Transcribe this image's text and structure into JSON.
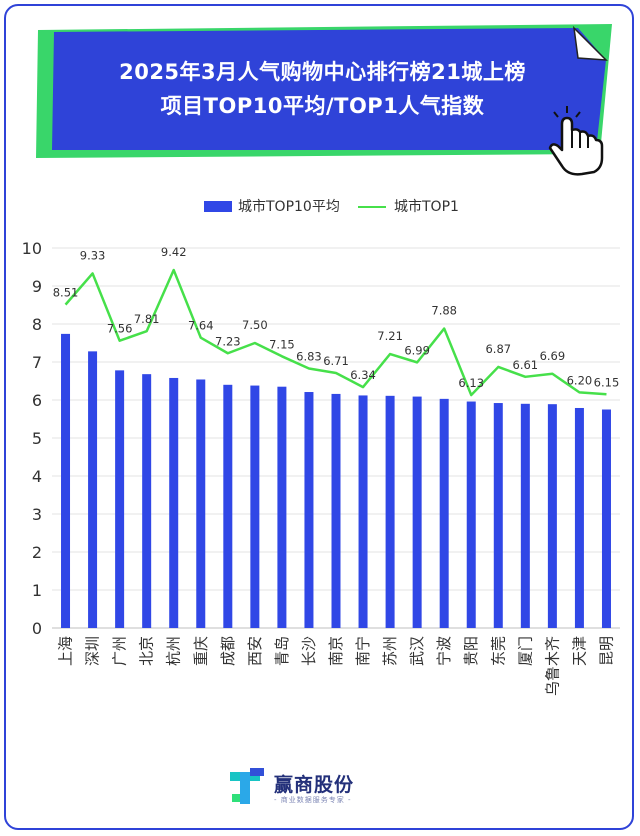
{
  "title_lines": [
    "2025年3月人气购物中心排行榜21城上榜",
    "项目TOP10平均/TOP1人气指数"
  ],
  "logo": {
    "name": "赢商股份",
    "tagline": "- 商业数据服务专家 -"
  },
  "colors": {
    "bar": "#3047e6",
    "line": "#46e04a",
    "banner": "#2f43d8",
    "banner_shadow": "#39d66a"
  },
  "chart_data": {
    "type": "bar",
    "categories": [
      "上海",
      "深圳",
      "广州",
      "北京",
      "杭州",
      "重庆",
      "成都",
      "西安",
      "青岛",
      "长沙",
      "南京",
      "南宁",
      "苏州",
      "武汉",
      "宁波",
      "贵阳",
      "东莞",
      "厦门",
      "乌鲁木齐",
      "天津",
      "昆明"
    ],
    "series": [
      {
        "name": "城市TOP10平均",
        "type": "bar",
        "values": [
          7.74,
          7.28,
          6.78,
          6.68,
          6.58,
          6.54,
          6.4,
          6.38,
          6.35,
          6.21,
          6.16,
          6.12,
          6.11,
          6.09,
          6.03,
          5.96,
          5.92,
          5.9,
          5.89,
          5.79,
          5.75
        ]
      },
      {
        "name": "城市TOP1",
        "type": "line",
        "values": [
          8.51,
          9.33,
          7.56,
          7.81,
          9.42,
          7.64,
          7.23,
          7.5,
          7.15,
          6.83,
          6.71,
          6.34,
          7.21,
          6.99,
          7.88,
          6.13,
          6.87,
          6.61,
          6.69,
          6.2,
          6.15
        ],
        "labels": [
          "8.51",
          "9.33",
          "7.56",
          "7.81",
          "9.42",
          "7.64",
          "7.23",
          "7.50",
          "7.15",
          "6.83",
          "6.71",
          "6.34",
          "7.21",
          "6.99",
          "7.88",
          "6.13",
          "6.87",
          "6.61",
          "6.69",
          "6.20",
          "6.15"
        ]
      }
    ],
    "ylim": [
      0,
      10
    ],
    "yticks": [
      "0",
      "1",
      "2",
      "3",
      "4",
      "5",
      "6",
      "7",
      "8",
      "9",
      "10"
    ],
    "grid": true,
    "legend_position": "top"
  }
}
